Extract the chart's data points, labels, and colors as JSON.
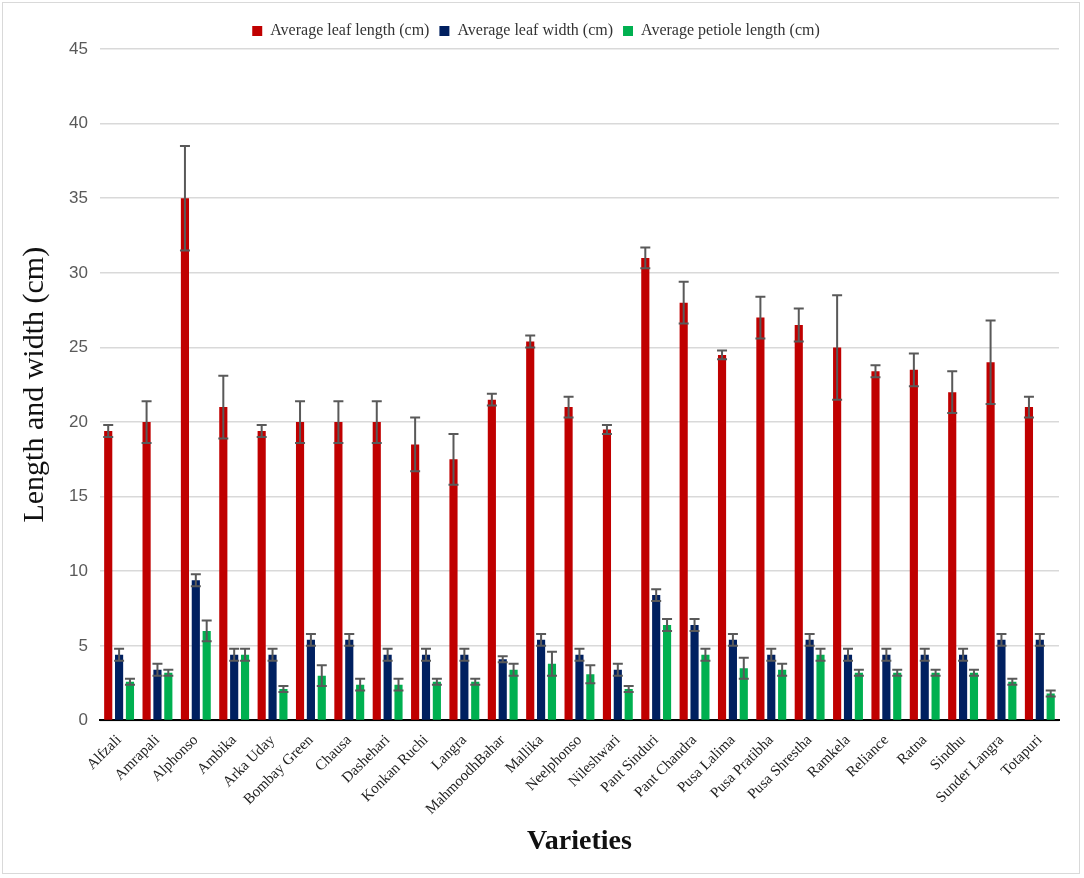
{
  "chart_data": {
    "type": "bar",
    "xlabel": "Varieties",
    "ylabel": "Length and width (cm)",
    "categories": [
      "Alfzali",
      "Amrapali",
      "Alphonso",
      "Ambika",
      "Arka Uday",
      "Bombay Green",
      "Chausa",
      "Dashehari",
      "Konkan Ruchi",
      "Langra",
      "MahmoodhBahar",
      "Mallika",
      "Neelphonso",
      "Nileshwari",
      "Pant Sinduri",
      "Pant Chandra",
      "Pusa Lalima",
      "Pusa Pratibha",
      "Pusa Shrestha",
      "Ramkela",
      "Reliance",
      "Ratna",
      "Sindhu",
      "Sunder Langra",
      "Totapuri"
    ],
    "series": [
      {
        "name": "Average leaf length (cm)",
        "color": "#c00000",
        "values": [
          19.4,
          20,
          35,
          21,
          19.4,
          20,
          20,
          20,
          18.5,
          17.5,
          21.5,
          25.4,
          21,
          19.5,
          31,
          28,
          24.5,
          27,
          26.5,
          25,
          23.4,
          23.5,
          22,
          24,
          21
        ],
        "errors": [
          0.4,
          1.4,
          3.5,
          2.1,
          0.4,
          1.4,
          1.4,
          1.4,
          1.8,
          1.7,
          0.4,
          0.4,
          0.7,
          0.3,
          0.7,
          1.4,
          0.3,
          1.4,
          1.1,
          3.5,
          0.4,
          1.1,
          1.4,
          2.8,
          0.7
        ]
      },
      {
        "name": "Average leaf width (cm)",
        "color": "#002060",
        "values": [
          4.4,
          3.4,
          9.4,
          4.4,
          4.4,
          5.4,
          5.4,
          4.4,
          4.4,
          4.4,
          4.1,
          5.4,
          4.4,
          3.4,
          8.4,
          6.4,
          5.4,
          4.4,
          5.4,
          4.4,
          4.4,
          4.4,
          4.4,
          5.4,
          5.4
        ],
        "errors": [
          0.4,
          0.4,
          0.4,
          0.4,
          0.4,
          0.4,
          0.4,
          0.4,
          0.4,
          0.4,
          0.2,
          0.4,
          0.4,
          0.4,
          0.4,
          0.4,
          0.4,
          0.4,
          0.4,
          0.4,
          0.4,
          0.4,
          0.4,
          0.4,
          0.4
        ]
      },
      {
        "name": "Average petiole length (cm)",
        "color": "#00b050",
        "values": [
          2.6,
          3.2,
          6,
          4.4,
          2.1,
          3,
          2.4,
          2.4,
          2.6,
          2.6,
          3.4,
          3.8,
          3.1,
          2.1,
          6.4,
          4.4,
          3.5,
          3.4,
          4.4,
          3.2,
          3.2,
          3.2,
          3.2,
          2.6,
          1.8
        ],
        "errors": [
          0.2,
          0.2,
          0.7,
          0.4,
          0.2,
          0.7,
          0.4,
          0.4,
          0.2,
          0.2,
          0.4,
          0.8,
          0.6,
          0.2,
          0.4,
          0.4,
          0.7,
          0.4,
          0.4,
          0.2,
          0.2,
          0.2,
          0.2,
          0.2,
          0.2
        ]
      }
    ],
    "ylim": [
      0,
      45
    ],
    "yticks": [
      0,
      5,
      10,
      15,
      20,
      25,
      30,
      35,
      40,
      45
    ],
    "grid": "y",
    "legend": "top"
  }
}
